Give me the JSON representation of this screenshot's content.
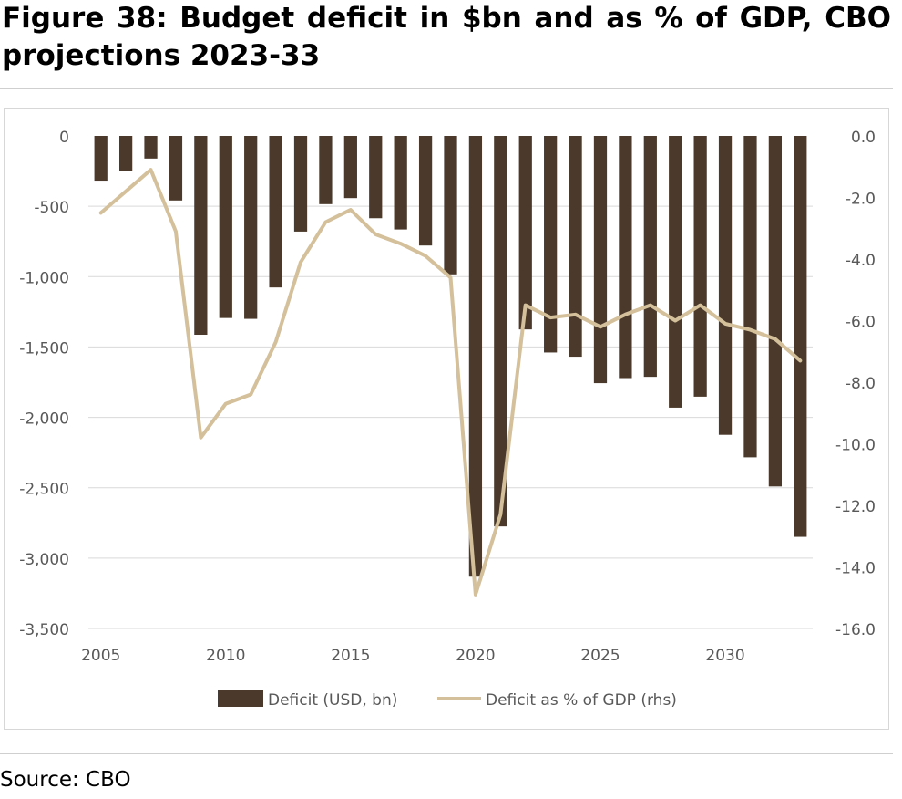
{
  "figure": {
    "title": "Figure 38: Budget deficit in $bn and as % of GDP, CBO projections 2023-33",
    "source": "Source: CBO"
  },
  "colors": {
    "bar": "#4b3a2b",
    "line": "#d4c09a",
    "grid": "#d9d9d9",
    "text": "#595959"
  },
  "chart_data": {
    "type": "bar",
    "title": "",
    "x": [
      2005,
      2006,
      2007,
      2008,
      2009,
      2010,
      2011,
      2012,
      2013,
      2014,
      2015,
      2016,
      2017,
      2018,
      2019,
      2020,
      2021,
      2022,
      2023,
      2024,
      2025,
      2026,
      2027,
      2028,
      2029,
      2030,
      2031,
      2032,
      2033
    ],
    "series": [
      {
        "name": "Deficit (USD, bn)",
        "type": "bar",
        "axis": "left",
        "values": [
          -318,
          -248,
          -161,
          -459,
          -1413,
          -1294,
          -1300,
          -1077,
          -680,
          -485,
          -442,
          -585,
          -665,
          -779,
          -984,
          -3132,
          -2775,
          -1375,
          -1539,
          -1569,
          -1757,
          -1721,
          -1712,
          -1931,
          -1853,
          -2124,
          -2284,
          -2491,
          -2849
        ]
      },
      {
        "name": "Deficit as % of GDP (rhs)",
        "type": "line",
        "axis": "right",
        "values": [
          -2.5,
          -1.8,
          -1.1,
          -3.1,
          -9.8,
          -8.7,
          -8.4,
          -6.7,
          -4.1,
          -2.8,
          -2.4,
          -3.2,
          -3.5,
          -3.9,
          -4.6,
          -14.9,
          -12.3,
          -5.5,
          -5.9,
          -5.8,
          -6.2,
          -5.8,
          -5.5,
          -6.0,
          -5.5,
          -6.1,
          -6.3,
          -6.6,
          -7.3
        ]
      }
    ],
    "y_left": {
      "ylim": [
        -3500,
        0
      ],
      "ticks": [
        0,
        -500,
        -1000,
        -1500,
        -2000,
        -2500,
        -3000,
        -3500
      ],
      "tick_labels": [
        "0",
        "-500",
        "-1,000",
        "-1,500",
        "-2,000",
        "-2,500",
        "-3,000",
        "-3,500"
      ]
    },
    "y_right": {
      "ylim": [
        -16,
        0
      ],
      "ticks": [
        0,
        -2,
        -4,
        -6,
        -8,
        -10,
        -12,
        -14,
        -16
      ],
      "tick_labels": [
        "0.0",
        "-2.0",
        "-4.0",
        "-6.0",
        "-8.0",
        "-10.0",
        "-12.0",
        "-14.0",
        "-16.0"
      ]
    },
    "x_ticks": [
      2005,
      2010,
      2015,
      2020,
      2025,
      2030
    ],
    "x_tick_labels": [
      "2005",
      "2010",
      "2015",
      "2020",
      "2025",
      "2030"
    ],
    "grid": true,
    "legend": {
      "position": "bottom",
      "entries": [
        "Deficit (USD, bn)",
        "Deficit as % of GDP (rhs)"
      ]
    }
  }
}
